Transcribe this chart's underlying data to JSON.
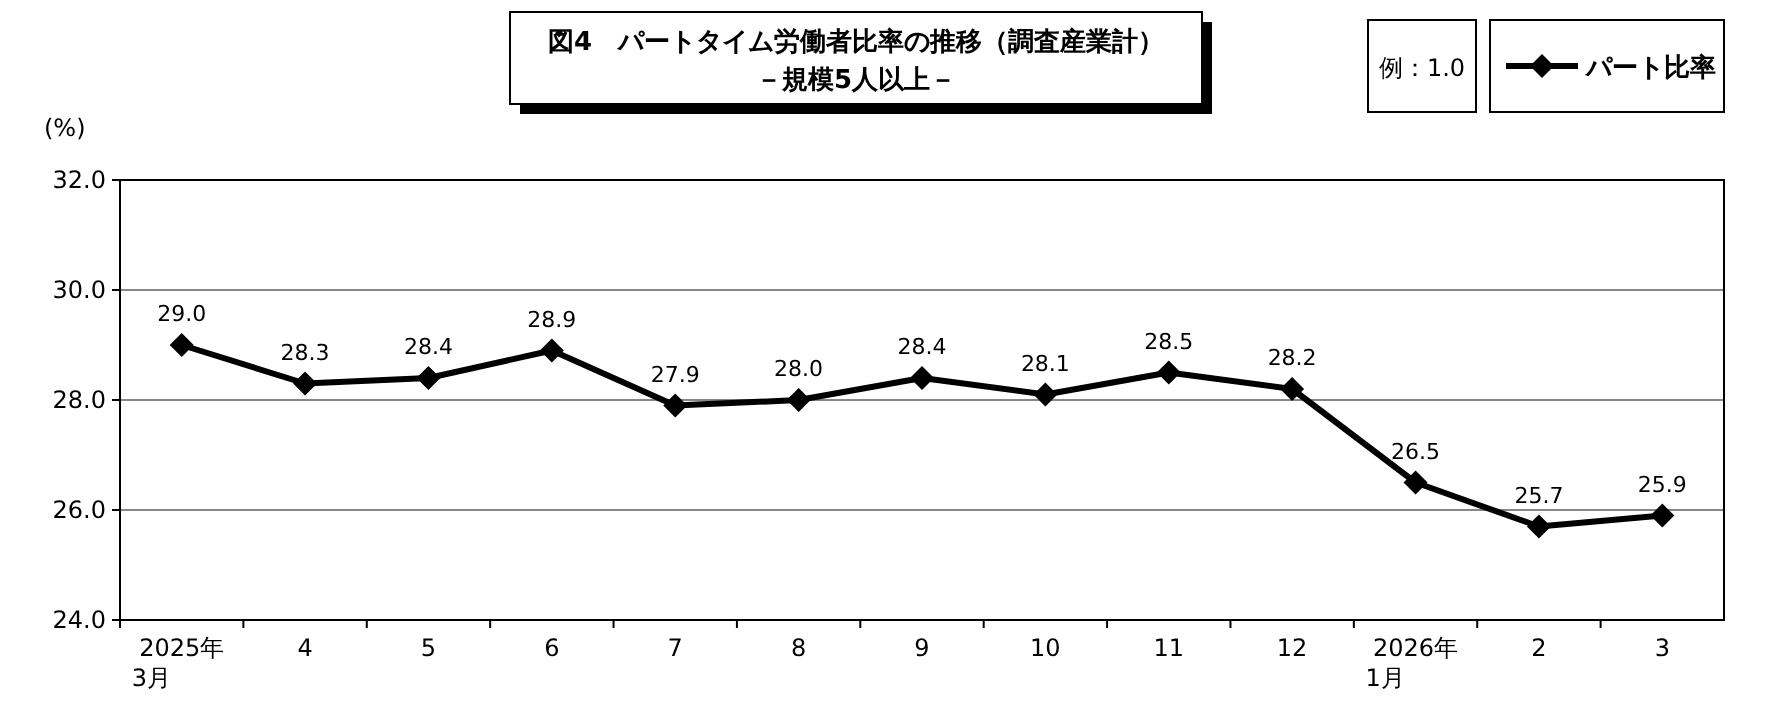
{
  "chart_data": {
    "type": "line",
    "title": "図4　パートタイム労働者比率の推移（調査産業計）",
    "subtitle": "－規模5人以上－",
    "ylabel": "(%)",
    "categories": [
      "2025年\n3月",
      "4",
      "5",
      "6",
      "7",
      "8",
      "9",
      "10",
      "11",
      "12",
      "2026年\n1月",
      "2",
      "3"
    ],
    "series": [
      {
        "name": "パート比率",
        "color": "#000000",
        "values": [
          29.0,
          28.3,
          28.4,
          28.9,
          27.9,
          28.0,
          28.4,
          28.1,
          28.5,
          28.2,
          26.5,
          25.7,
          25.9
        ],
        "value_labels": [
          "29.0",
          "28.3",
          "28.4",
          "28.9",
          "27.9",
          "28.0",
          "28.4",
          "28.1",
          "28.5",
          "28.2",
          "26.5",
          "25.7",
          "25.9"
        ]
      }
    ],
    "ylim": [
      24,
      32
    ],
    "yticks": [
      {
        "value": 24,
        "label": "24.0"
      },
      {
        "value": 26,
        "label": "26.0"
      },
      {
        "value": 28,
        "label": "28.0"
      },
      {
        "value": 30,
        "label": "30.0"
      },
      {
        "value": 32,
        "label": "32.0"
      }
    ],
    "annotations": [
      "例：1.0"
    ],
    "grid": "y",
    "legend": "top right",
    "marker": "diamond",
    "line_style": "solid"
  }
}
